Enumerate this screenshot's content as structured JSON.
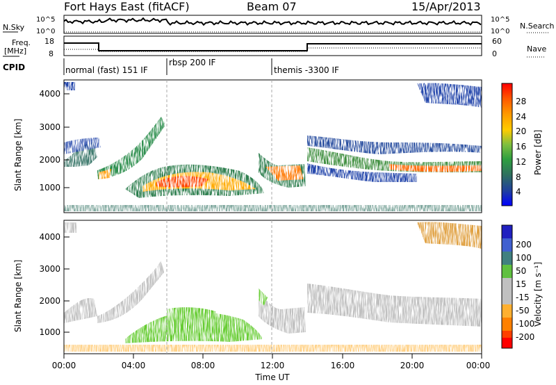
{
  "header": {
    "title": "Fort Hays East (fitACF)",
    "beam": "Beam 07",
    "date": "15/Apr/2013"
  },
  "colors": {
    "ink": "#000000",
    "power_scale": [
      "#0000ff",
      "#1f3f9f",
      "#2f6f5f",
      "#2f9f3f",
      "#7fbf3f",
      "#ffcc00",
      "#ff9900",
      "#ff5500",
      "#ff0000"
    ],
    "velocity_scale": [
      "#2020c0",
      "#4060d0",
      "#408080",
      "#60c040",
      "#c0c0c0",
      "#c0c0c0",
      "#ffb030",
      "#ff8000",
      "#ff4000",
      "#ff0000"
    ]
  },
  "nsky_panel": {
    "left_label": "N.Sky",
    "left_ticks": [
      "10^5",
      "10^0"
    ],
    "right_label": "N.Search",
    "right_ticks": [
      "10^5",
      "10^0"
    ]
  },
  "freq_panel": {
    "left_label_1": "Freq.",
    "left_label_2": "[MHz]",
    "left_ticks": [
      "18",
      "8"
    ],
    "right_label": "Nave",
    "right_ticks": [
      "60",
      "0"
    ]
  },
  "cpid": {
    "label": "CPID",
    "segments": [
      "normal (fast) 151 IF",
      "rbsp 200 IF",
      "themis -3300 IF"
    ]
  },
  "power_panel": {
    "ylabel": "Slant Range [km]",
    "yticks": [
      "4000",
      "3000",
      "2000",
      "1000"
    ],
    "colorbar_label": "Power [dB]",
    "colorbar_ticks": [
      "28",
      "24",
      "20",
      "16",
      "12",
      "8",
      "4"
    ]
  },
  "velocity_panel": {
    "ylabel": "Slant Range [km]",
    "yticks": [
      "4000",
      "3000",
      "2000",
      "1000"
    ],
    "colorbar_label": "Velocity [m s⁻¹]",
    "colorbar_ticks": [
      "200",
      "100",
      "50",
      "15",
      "-15",
      "-50",
      "-100",
      "-200"
    ]
  },
  "xaxis": {
    "label": "Time UT",
    "ticks": [
      "00:00",
      "04:00",
      "08:00",
      "12:00",
      "16:00",
      "20:00",
      "00:00"
    ]
  }
}
